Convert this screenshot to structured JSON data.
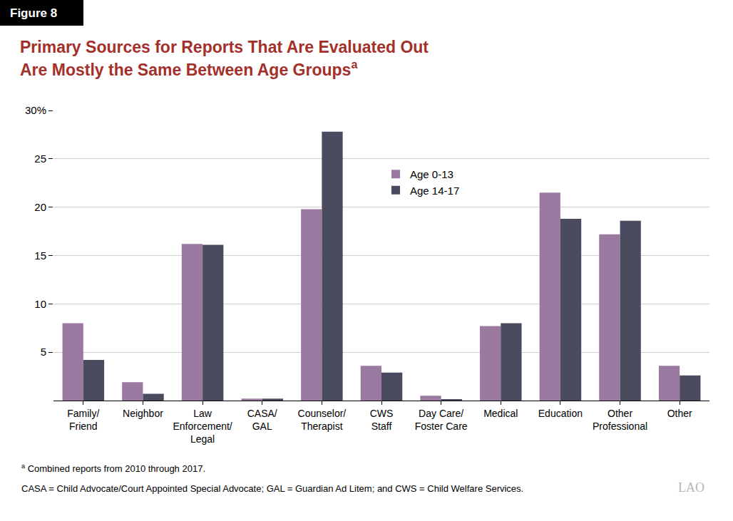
{
  "chart_data": {
    "type": "bar",
    "figure_label": "Figure 8",
    "title": "Primary Sources for Reports That Are Evaluated Out\nAre Mostly the Same Between Age Groups",
    "footnote_marker": "a",
    "footnotes": [
      "Combined reports from 2010 through 2017.",
      "CASA = Child Advocate/Court Appointed Special Advocate; GAL = Guardian Ad Litem; and CWS = Child Welfare Services."
    ],
    "logo": "LAO",
    "categories": [
      "Family/\nFriend",
      "Neighbor",
      "Law\nEnforcement/\nLegal",
      "CASA/\nGAL",
      "Counselor/\nTherapist",
      "CWS\nStaff",
      "Day Care/\nFoster Care",
      "Medical",
      "Education",
      "Other\nProfessional",
      "Other"
    ],
    "series": [
      {
        "name": "Age 0-13",
        "color": "#9b7aa2",
        "values": [
          8.0,
          1.9,
          16.2,
          0.2,
          19.8,
          3.6,
          0.5,
          7.7,
          21.5,
          17.2,
          3.6
        ]
      },
      {
        "name": "Age 14-17",
        "color": "#4b4b5f",
        "values": [
          4.2,
          0.7,
          16.1,
          0.2,
          27.8,
          2.9,
          0.15,
          8.0,
          18.8,
          18.6,
          2.6
        ]
      }
    ],
    "ylim": [
      0,
      30
    ],
    "yticks": [
      5,
      10,
      15,
      20,
      25,
      {
        "value": 30,
        "label": "30%"
      }
    ],
    "grid": true,
    "legend": "top"
  }
}
